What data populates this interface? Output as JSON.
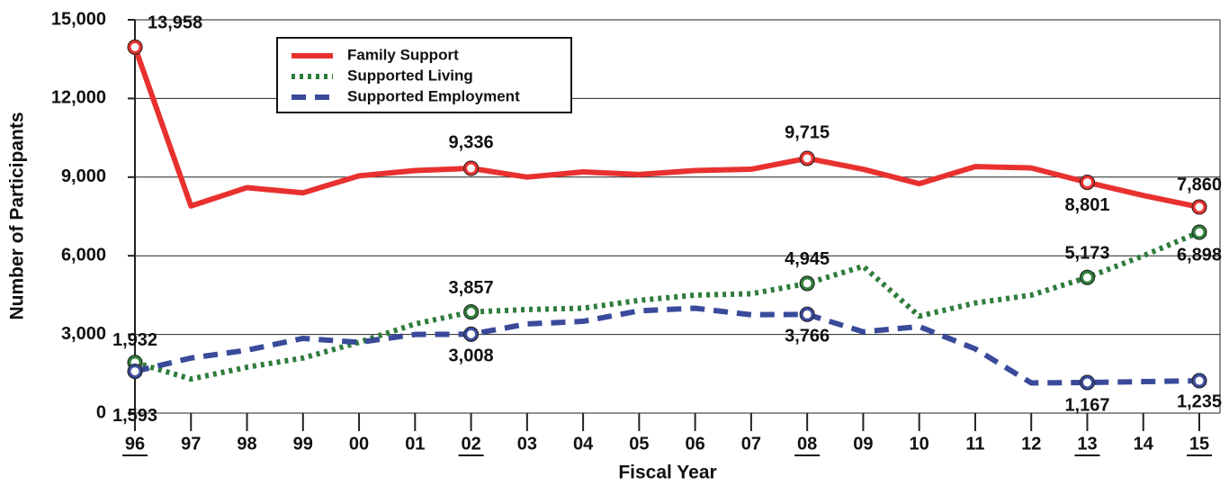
{
  "chart_data": {
    "type": "line",
    "x_label": "Fiscal Year",
    "y_label": "Number of Participants",
    "categories": [
      "96",
      "97",
      "98",
      "99",
      "00",
      "01",
      "02",
      "03",
      "04",
      "05",
      "06",
      "07",
      "08",
      "09",
      "10",
      "11",
      "12",
      "13",
      "14",
      "15"
    ],
    "ylim": [
      0,
      15000
    ],
    "yticks": [
      0,
      {
        "value": 3000,
        "label": "3,000"
      },
      {
        "value": 6000,
        "label": "6,000"
      },
      {
        "value": 9000,
        "label": "9,000"
      },
      {
        "value": 12000,
        "label": "12,000"
      },
      {
        "value": 15000,
        "label": "15,000"
      }
    ],
    "grid": true,
    "legend": "top-left",
    "series": [
      {
        "name": "Family Support",
        "color": "#e8312f",
        "dash": "solid",
        "values": [
          13958,
          7900,
          8600,
          8400,
          9050,
          9250,
          9336,
          9000,
          9200,
          9100,
          9250,
          9300,
          9715,
          9300,
          8750,
          9400,
          9350,
          8801,
          8300,
          7860
        ],
        "value_labels": [
          "13,958",
          null,
          null,
          null,
          null,
          null,
          "9,336",
          null,
          null,
          null,
          null,
          null,
          "9,715",
          null,
          null,
          null,
          null,
          "8,801",
          null,
          "7,860"
        ]
      },
      {
        "name": "Supported Living",
        "color": "#2e7d3a",
        "dash": "dotted",
        "values": [
          1932,
          1300,
          1750,
          2100,
          2700,
          3400,
          3857,
          3950,
          4000,
          4300,
          4500,
          4550,
          4945,
          5600,
          3700,
          4200,
          4500,
          5173,
          6000,
          6898
        ],
        "value_labels": [
          "1,932",
          null,
          null,
          null,
          null,
          null,
          "3,857",
          null,
          null,
          null,
          null,
          null,
          "4,945",
          null,
          null,
          null,
          null,
          "5,173",
          null,
          "6,898"
        ]
      },
      {
        "name": "Supported Employment",
        "color": "#3a4a9a",
        "dash": "dashed",
        "values": [
          1593,
          2100,
          2400,
          2850,
          2700,
          3000,
          3008,
          3400,
          3500,
          3900,
          4000,
          3750,
          3766,
          3100,
          3300,
          2450,
          1150,
          1167,
          1200,
          1235
        ],
        "value_labels": [
          "1,593",
          null,
          null,
          null,
          null,
          null,
          "3,008",
          null,
          null,
          null,
          null,
          null,
          "3,766",
          null,
          null,
          null,
          null,
          "1,167",
          null,
          "1,235"
        ]
      }
    ]
  }
}
